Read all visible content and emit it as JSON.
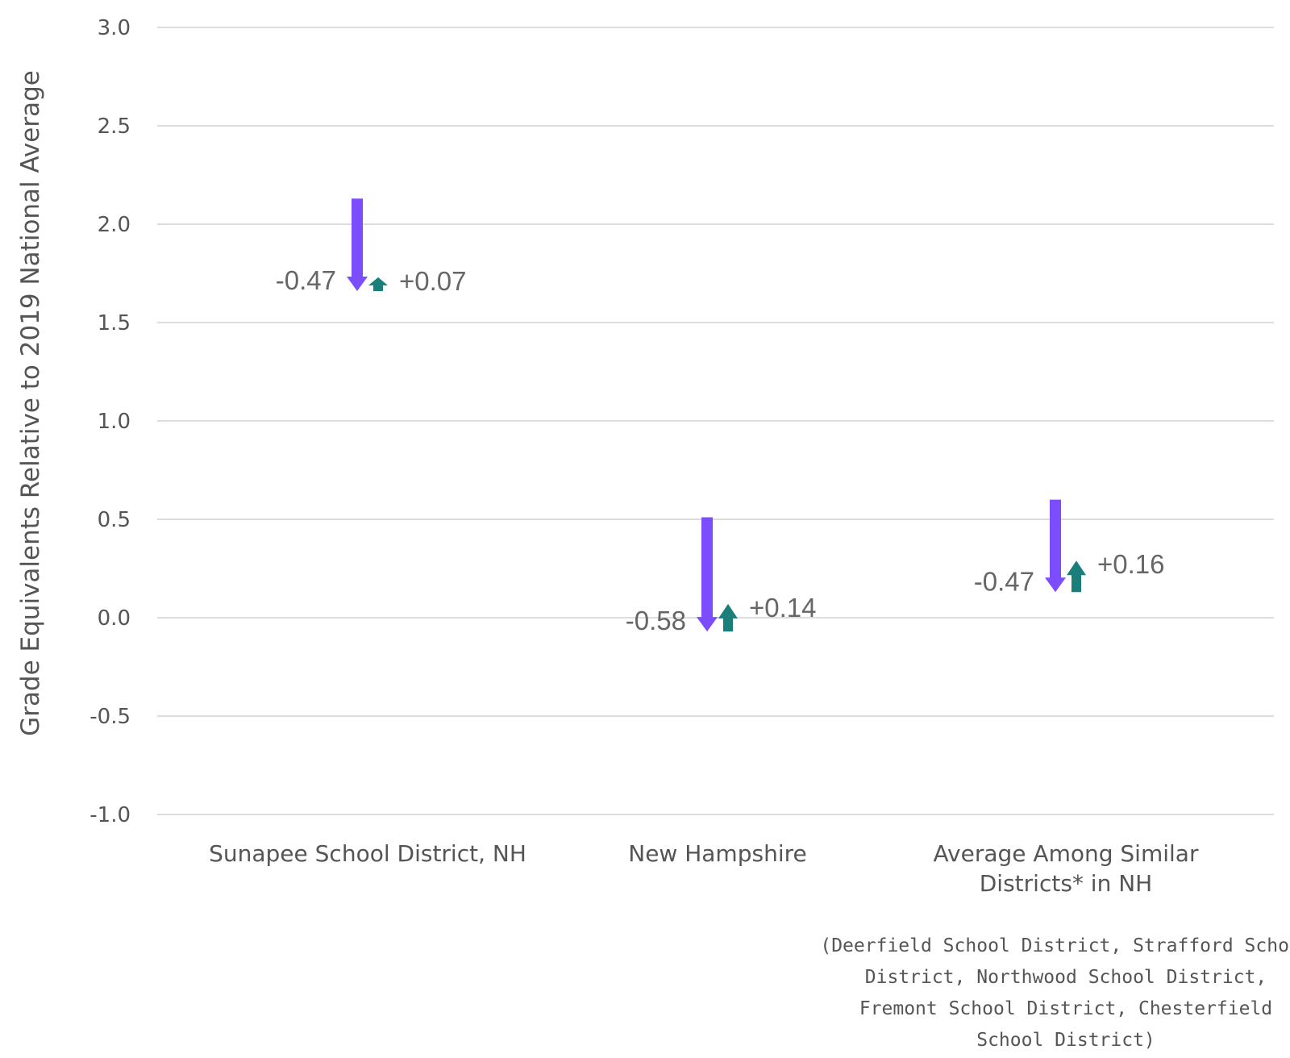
{
  "chart_data": {
    "type": "arrow",
    "title": "",
    "xlabel": "",
    "ylabel": "Grade Equivalents Relative to 2019 National Average",
    "ylim": [
      -1.0,
      3.0
    ],
    "yticks": [
      "3.0",
      "2.5",
      "2.0",
      "1.5",
      "1.0",
      "0.5",
      "0.0",
      "-0.5",
      "-1.0"
    ],
    "grid": true,
    "categories": [
      {
        "label_lines": [
          "Sunapee School District, NH"
        ],
        "note_lines": [],
        "start": 2.13,
        "after_decline": 1.66,
        "after_recovery": 1.73,
        "decline": -0.47,
        "recovery": 0.07,
        "decline_label": "-0.47",
        "recovery_label": "+0.07"
      },
      {
        "label_lines": [
          "New Hampshire"
        ],
        "note_lines": [],
        "start": 0.51,
        "after_decline": -0.07,
        "after_recovery": 0.07,
        "decline": -0.58,
        "recovery": 0.14,
        "decline_label": "-0.58",
        "recovery_label": "+0.14"
      },
      {
        "label_lines": [
          "Average Among Similar",
          "Districts* in NH"
        ],
        "note_lines": [
          "(Deerfield School District, Strafford School",
          "District, Northwood School District,",
          "Fremont School District, Chesterfield",
          "School District)"
        ],
        "start": 0.6,
        "after_decline": 0.13,
        "after_recovery": 0.29,
        "decline": -0.47,
        "recovery": 0.16,
        "decline_label": "-0.47",
        "recovery_label": "+0.16"
      }
    ],
    "colors": {
      "decline": "#7c4dff",
      "recovery": "#1a7f7a"
    }
  }
}
